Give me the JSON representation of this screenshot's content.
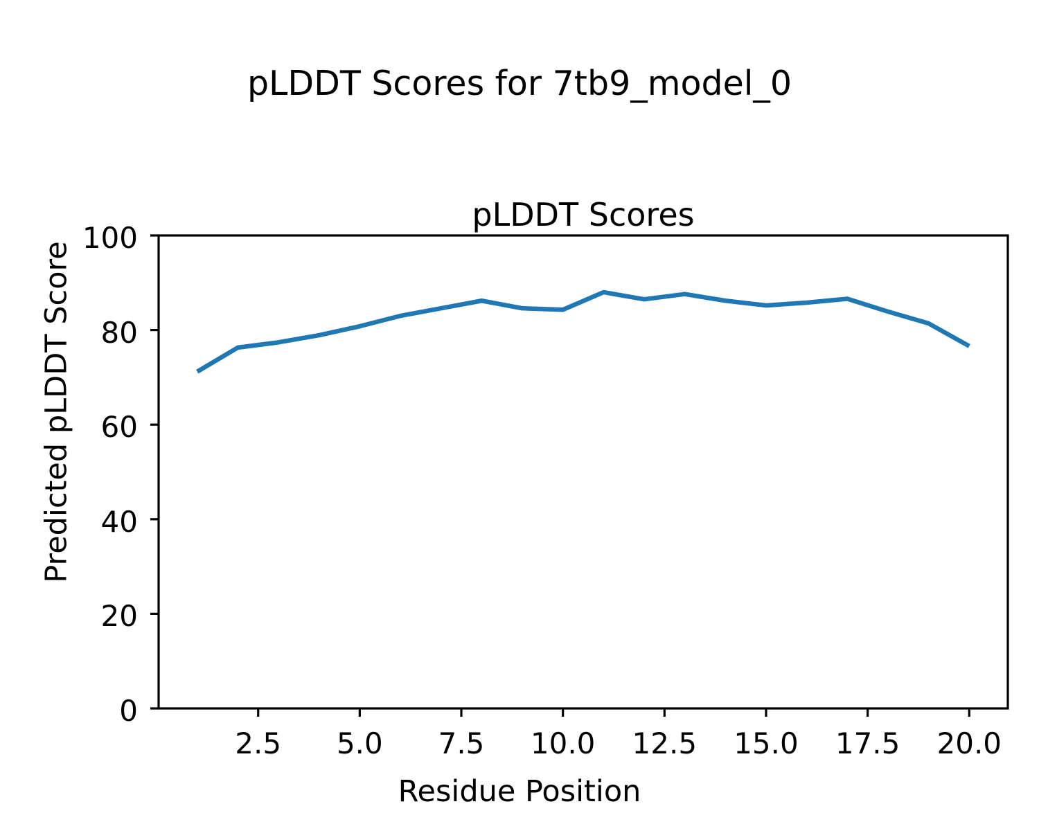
{
  "figure": {
    "suptitle": "pLDDT Scores for 7tb9_model_0",
    "background_color": "#ffffff",
    "text_color": "#000000"
  },
  "chart_data": {
    "type": "line",
    "title": "pLDDT Scores",
    "xlabel": "Residue Position",
    "ylabel": "Predicted pLDDT Score",
    "x": [
      1,
      2,
      3,
      4,
      5,
      6,
      7,
      8,
      9,
      10,
      11,
      12,
      13,
      14,
      15,
      16,
      17,
      18,
      19,
      20
    ],
    "y": [
      71.2,
      76.3,
      77.4,
      78.9,
      80.8,
      83.0,
      84.6,
      86.2,
      84.6,
      84.3,
      88.0,
      86.5,
      87.6,
      86.2,
      85.2,
      85.8,
      86.6,
      83.9,
      81.4,
      76.6
    ],
    "xlim": [
      0.05,
      20.95
    ],
    "ylim": [
      0,
      100
    ],
    "xticks": [
      2.5,
      5.0,
      7.5,
      10.0,
      12.5,
      15.0,
      17.5,
      20.0
    ],
    "xtick_labels": [
      "2.5",
      "5.0",
      "7.5",
      "10.0",
      "12.5",
      "15.0",
      "17.5",
      "20.0"
    ],
    "yticks": [
      0,
      20,
      40,
      60,
      80,
      100
    ],
    "ytick_labels": [
      "0",
      "20",
      "40",
      "60",
      "80",
      "100"
    ],
    "grid": false,
    "legend": "none",
    "line_color": "#1f77b4",
    "axes_edge_color": "#000000"
  }
}
